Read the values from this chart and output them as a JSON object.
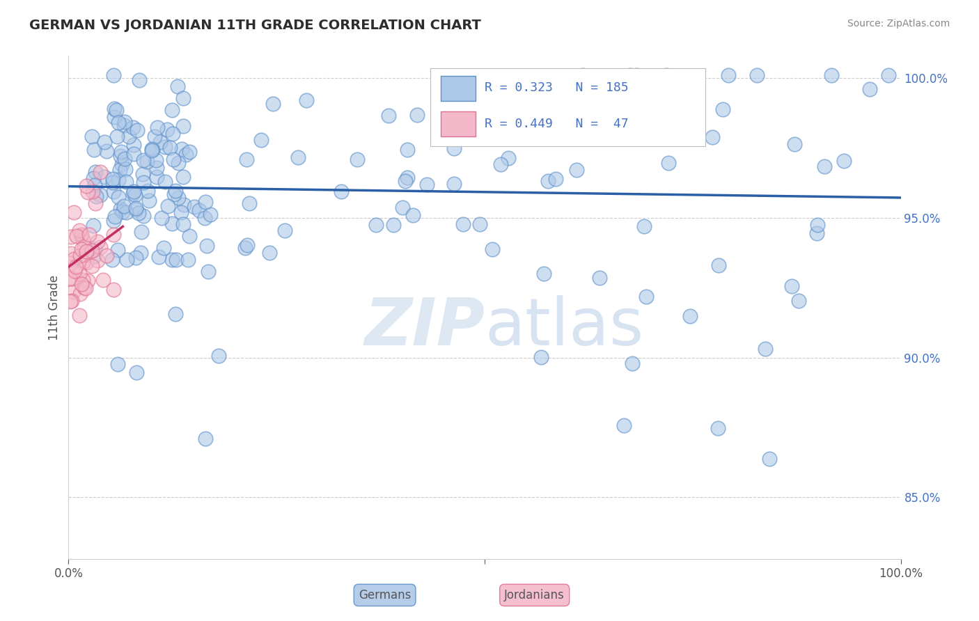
{
  "title": "GERMAN VS JORDANIAN 11TH GRADE CORRELATION CHART",
  "source": "Source: ZipAtlas.com",
  "ylabel": "11th Grade",
  "xlim": [
    0,
    1
  ],
  "ylim": [
    0.828,
    1.008
  ],
  "yticks": [
    0.85,
    0.9,
    0.95,
    1.0
  ],
  "ytick_labels": [
    "85.0%",
    "90.0%",
    "95.0%",
    "100.0%"
  ],
  "xtick_labels": [
    "0.0%",
    "",
    "100.0%"
  ],
  "blue_color": "#aec8e8",
  "pink_color": "#f4b8ca",
  "blue_edge_color": "#5b8fc9",
  "pink_edge_color": "#e07090",
  "blue_line_color": "#2a5fa8",
  "pink_line_color": "#c03060",
  "background_color": "#ffffff",
  "grid_color": "#cccccc",
  "title_color": "#2d2d2d",
  "watermark_color": "#d8e4f0",
  "legend_text_color": "#4472c4",
  "source_color": "#888888",
  "axis_color": "#555555",
  "legend_R_blue": "R = 0.323",
  "legend_N_blue": "N = 185",
  "legend_R_pink": "R = 0.449",
  "legend_N_pink": "N =  47",
  "legend_label_blue": "Germans",
  "legend_label_pink": "Jordanians"
}
